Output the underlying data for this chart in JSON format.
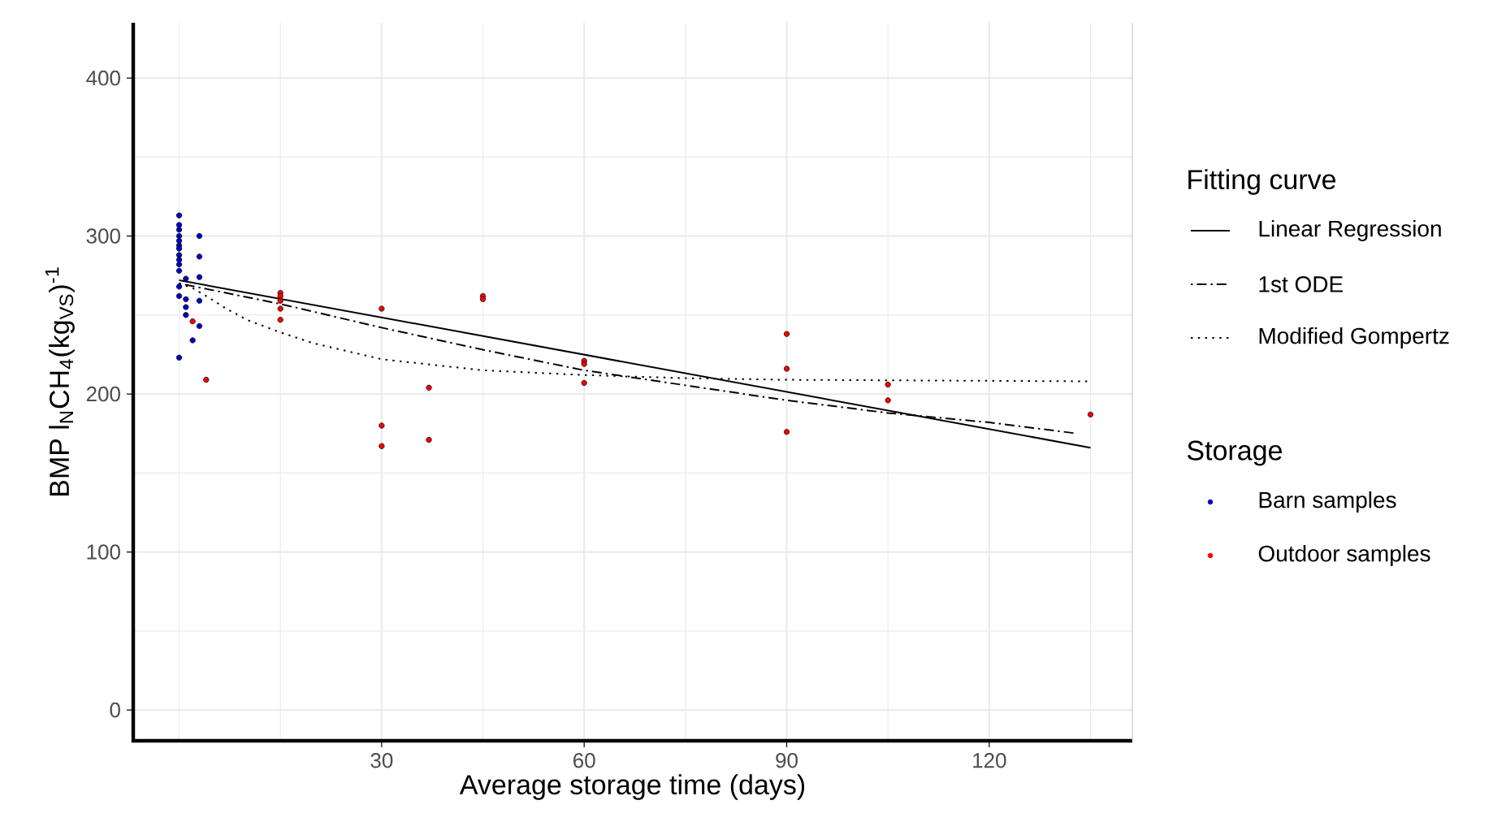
{
  "chart_data": {
    "type": "scatter",
    "xlabel": "Average storage time (days)",
    "ylabel": "BMP l$_{N}$CH$_{4}$(kg$_{VS}$)$^{-1}$",
    "legend_title": [
      "Fitting curve",
      "Storage"
    ],
    "xlim": [
      -6.8,
      141.2
    ],
    "ylim": [
      -19.5,
      435
    ],
    "xticks": [
      30,
      60,
      90,
      120
    ],
    "yticks": [
      0,
      100,
      200,
      300,
      400
    ],
    "grid": true,
    "legend": "right",
    "series": [
      {
        "name": "Linear Regression",
        "type": "line",
        "line_style": "solid",
        "marker": "none",
        "color": "#000000",
        "x": [
          0,
          135
        ],
        "values": [
          272,
          166
        ]
      },
      {
        "name": "1st ODE",
        "type": "line",
        "line_style": "dashdot",
        "marker": "none",
        "color": "#000000",
        "x": [
          0,
          15,
          30,
          45,
          60,
          90,
          105,
          120,
          133
        ],
        "values": [
          270,
          257,
          242,
          228,
          215,
          196,
          188,
          182,
          175
        ]
      },
      {
        "name": "Modified Gompertz",
        "type": "line",
        "line_style": "dotted",
        "marker": "none",
        "color": "#000000",
        "x": [
          0,
          2,
          4,
          7,
          10,
          15,
          20,
          30,
          45,
          60,
          75,
          90,
          135
        ],
        "values": [
          270,
          267,
          262,
          254,
          247,
          239,
          232,
          222,
          215,
          212,
          210,
          209,
          208
        ]
      },
      {
        "name": "Barn samples",
        "marker": "circle",
        "color": "#0000cc",
        "x": [
          0,
          0,
          0,
          0,
          0,
          0,
          0,
          0,
          0,
          0,
          0,
          0,
          0,
          0,
          1,
          1,
          1,
          1,
          3,
          3,
          3,
          3,
          3,
          2
        ],
        "values": [
          313,
          307,
          304,
          300,
          297,
          294,
          292,
          288,
          285,
          282,
          278,
          268,
          262,
          223,
          273,
          260,
          255,
          250,
          300,
          287,
          274,
          259,
          243,
          234
        ]
      },
      {
        "name": "Outdoor samples",
        "marker": "circle",
        "color": "#ff0000",
        "x": [
          2,
          4,
          15,
          15,
          15,
          15,
          15,
          30,
          30,
          30,
          37,
          37,
          45,
          45,
          60,
          60,
          60,
          90,
          90,
          90,
          105,
          105,
          135
        ],
        "values": [
          246,
          209,
          264,
          262,
          259,
          254,
          247,
          254,
          180,
          167,
          204,
          171,
          262,
          260,
          221,
          219,
          207,
          238,
          216,
          176,
          206,
          196,
          187
        ]
      }
    ]
  }
}
